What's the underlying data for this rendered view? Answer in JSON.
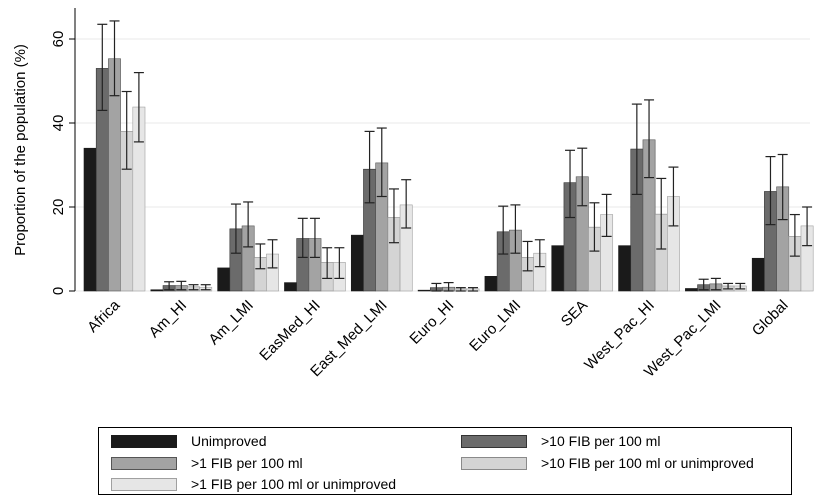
{
  "chart_data": {
    "type": "bar",
    "ylabel": "Proportion of the population (%)",
    "ylim": [
      0,
      66
    ],
    "yticks": [
      0,
      20,
      40,
      60
    ],
    "grid": true,
    "categories": [
      "Africa",
      "Am_HI",
      "Am_LMI",
      "EasMed_HI",
      "East_Med_LMI",
      "Euro_HI",
      "Euro_LMI",
      "SEA",
      "West_Pac_HI",
      "West_Pac_LMI",
      "Global"
    ],
    "series": [
      {
        "name": "Unimproved",
        "color": "#1a1a1a",
        "stroke": "#1a1a1a",
        "values": [
          34,
          0.3,
          5.5,
          2,
          13.3,
          0.2,
          3.5,
          10.8,
          10.8,
          0.6,
          7.8
        ],
        "error_low": [
          null,
          null,
          null,
          null,
          null,
          null,
          null,
          null,
          null,
          null,
          null
        ],
        "error_high": [
          null,
          null,
          null,
          null,
          null,
          null,
          null,
          null,
          null,
          null,
          null
        ]
      },
      {
        "name": ">10 FIB per 100 ml",
        "color": "#6b6b6b",
        "stroke": "#333333",
        "values": [
          53,
          1.3,
          14.8,
          12.5,
          29,
          0.8,
          14.1,
          25.8,
          33.8,
          1.5,
          23.7
        ],
        "error_low": [
          43,
          0.3,
          9,
          8,
          21,
          0,
          8.8,
          17.5,
          23,
          0.3,
          15.8
        ],
        "error_high": [
          63.5,
          2.2,
          20.7,
          17.3,
          38,
          1.8,
          20.2,
          33.5,
          44.5,
          2.8,
          32
        ]
      },
      {
        "name": ">1 FIB per 100 ml",
        "color": "#a3a3a3",
        "stroke": "#555555",
        "values": [
          55.3,
          1.3,
          15.5,
          12.5,
          30.5,
          0.9,
          14.5,
          27.2,
          36,
          1.7,
          24.8
        ],
        "error_low": [
          46.5,
          0.3,
          10.5,
          8,
          22.5,
          0,
          9,
          20.3,
          27,
          0.3,
          17
        ],
        "error_high": [
          64.3,
          2.3,
          21.2,
          17.3,
          38.8,
          2,
          20.5,
          34,
          45.5,
          3,
          32.5
        ]
      },
      {
        "name": ">10 FIB per 100 ml or unimproved",
        "color": "#d4d4d4",
        "stroke": "#8a8a8a",
        "values": [
          38,
          1,
          8,
          6.8,
          17.5,
          0.5,
          8,
          15.2,
          18.3,
          1.2,
          13
        ],
        "error_low": [
          29,
          0.3,
          5.3,
          3,
          11.5,
          0,
          4.8,
          9.5,
          10,
          0.5,
          8.3
        ],
        "error_high": [
          47.5,
          1.5,
          11.2,
          10.3,
          24.3,
          0.8,
          11.8,
          21,
          26.8,
          1.8,
          18.2
        ]
      },
      {
        "name": ">1 FIB per 100 ml or unimproved",
        "color": "#e6e6e6",
        "stroke": "#a0a0a0",
        "values": [
          43.8,
          0.9,
          8.8,
          6.8,
          20.5,
          0.5,
          9,
          18.2,
          22.5,
          1.2,
          15.5
        ],
        "error_low": [
          35.5,
          0.3,
          5.5,
          3,
          15,
          0,
          5.8,
          13,
          15.5,
          0.5,
          10.8
        ],
        "error_high": [
          52,
          1.5,
          12.2,
          10.3,
          26.5,
          0.8,
          12.2,
          23,
          29.5,
          1.8,
          20
        ]
      }
    ],
    "legend": {
      "placement": "bottom",
      "entries": [
        {
          "name": "Unimproved",
          "series": 0
        },
        {
          "name": ">10 FIB per 100 ml",
          "series": 1
        },
        {
          "name": ">1 FIB per 100 ml",
          "series": 2
        },
        {
          "name": ">10 FIB per 100 ml or unimproved",
          "series": 3
        },
        {
          "name": ">1 FIB per 100 ml or unimproved",
          "series": 4
        }
      ]
    }
  }
}
